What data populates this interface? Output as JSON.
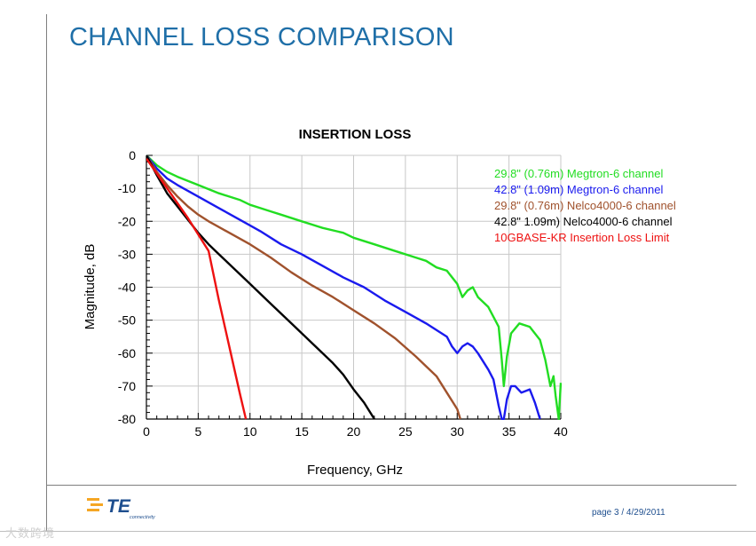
{
  "slide": {
    "title": "CHANNEL LOSS COMPARISON",
    "footer": {
      "page_text": "page 3 / 4/29/2011",
      "logo_text": "TE",
      "logo_subtext": "connectivity"
    },
    "watermark": "大数跨境"
  },
  "colors": {
    "title": "#1f6fa8",
    "megtron_298": "#22dd22",
    "megtron_428": "#1a1aee",
    "nelco_298": "#a0522d",
    "nelco_428": "#000000",
    "limit": "#ee1111"
  },
  "chart_data": {
    "type": "line",
    "title": "INSERTION LOSS",
    "xlabel": "Frequency, GHz",
    "ylabel": "Magnitude, dB",
    "xlim": [
      0,
      40
    ],
    "ylim": [
      -80,
      0
    ],
    "xticks": [
      0,
      5,
      10,
      15,
      20,
      25,
      30,
      35,
      40
    ],
    "yticks": [
      0,
      -10,
      -20,
      -30,
      -40,
      -50,
      -60,
      -70,
      -80
    ],
    "grid": true,
    "legend_position": "top-right",
    "series": [
      {
        "name": "29.8\" (0.76m) Megtron-6 channel",
        "color": "#22dd22",
        "x": [
          0,
          1,
          2,
          3,
          5,
          7,
          9,
          10,
          11,
          12,
          13,
          15,
          17,
          19,
          20,
          22,
          24,
          26,
          27,
          28,
          29,
          30,
          30.5,
          31,
          31.5,
          32,
          33,
          34,
          34.3,
          34.5,
          34.8,
          35.2,
          36,
          37,
          38,
          38.5,
          39,
          39.3,
          39.5,
          39.8,
          40
        ],
        "y": [
          0,
          -3,
          -5,
          -6.5,
          -9,
          -11.5,
          -13.5,
          -15,
          -16,
          -17,
          -18,
          -20,
          -22,
          -23.5,
          -25,
          -27,
          -29,
          -31,
          -32,
          -34,
          -35,
          -39,
          -43,
          -41,
          -40,
          -43,
          -46,
          -52,
          -62,
          -70,
          -61,
          -54,
          -51,
          -52,
          -56,
          -62,
          -70,
          -67,
          -73,
          -80,
          -69
        ]
      },
      {
        "name": "42.8\" (1.09m) Megtron-6 channel",
        "color": "#1a1aee",
        "x": [
          0,
          1,
          2,
          3,
          5,
          7,
          9,
          11,
          13,
          15,
          17,
          19,
          21,
          23,
          25,
          27,
          29,
          29.5,
          30,
          30.5,
          31,
          31.5,
          32,
          33,
          33.5,
          34,
          34.3,
          34.5,
          34.8,
          35.2,
          35.6,
          36.2,
          37,
          37.5,
          38
        ],
        "y": [
          0,
          -4,
          -7,
          -9,
          -12.5,
          -16,
          -19.5,
          -23,
          -27,
          -30,
          -33.5,
          -37,
          -40,
          -44,
          -47.5,
          -51,
          -55,
          -58,
          -60,
          -58,
          -57,
          -58,
          -60,
          -65,
          -68,
          -76,
          -80,
          -80,
          -74,
          -70,
          -70,
          -72,
          -71,
          -75,
          -80
        ]
      },
      {
        "name": "29.8\" (0.76m) Nelco4000-6 channel",
        "color": "#a0522d",
        "x": [
          0,
          1,
          2,
          3,
          4,
          5,
          6,
          8,
          10,
          12,
          14,
          16,
          18,
          20,
          22,
          24,
          26,
          28,
          29,
          30,
          30.3
        ],
        "y": [
          0,
          -5,
          -9,
          -12.5,
          -15.5,
          -18,
          -20,
          -23.5,
          -27,
          -31,
          -35.5,
          -39.5,
          -43,
          -47,
          -51,
          -55.5,
          -61,
          -67,
          -72,
          -77,
          -80
        ]
      },
      {
        "name": "42.8\" 1.09m) Nelco4000-6 channel",
        "color": "#000000",
        "x": [
          0,
          1,
          2,
          3,
          4,
          5,
          6,
          7,
          8,
          10,
          12,
          14,
          16,
          18,
          19,
          20,
          21,
          22
        ],
        "y": [
          0,
          -6,
          -11.5,
          -15.5,
          -19.5,
          -23.5,
          -27,
          -30,
          -33,
          -39,
          -45,
          -51,
          -57,
          -63,
          -66.5,
          -71,
          -75,
          -80
        ]
      },
      {
        "name": "10GBASE-KR Insertion Loss Limit",
        "color": "#ee1111",
        "x": [
          0,
          2,
          4,
          6,
          7,
          8,
          9,
          9.6
        ],
        "y": [
          -1,
          -10,
          -19,
          -29,
          -44,
          -58,
          -72,
          -80
        ]
      }
    ]
  }
}
